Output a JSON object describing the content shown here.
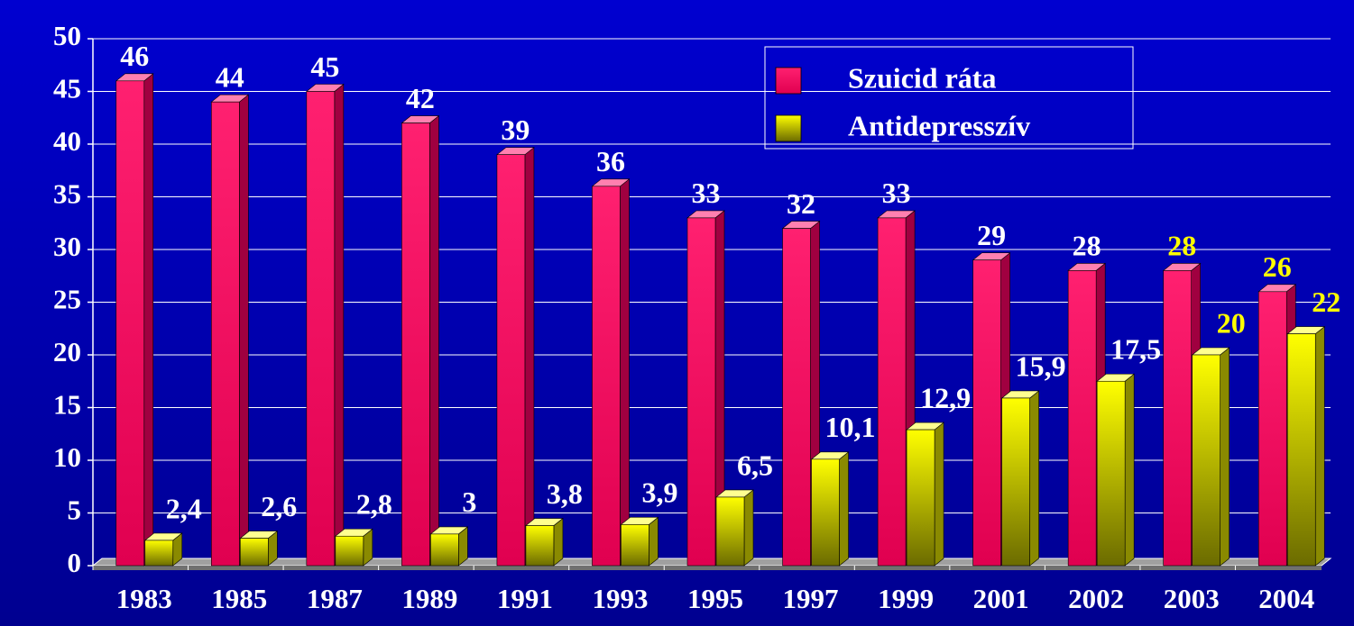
{
  "chart_data": {
    "type": "bar",
    "categories": [
      "1983",
      "1985",
      "1987",
      "1989",
      "1991",
      "1993",
      "1995",
      "1997",
      "1999",
      "2001",
      "2002",
      "2003",
      "2004"
    ],
    "series": [
      {
        "name": "Szuicid ráta",
        "color": "#ff0060",
        "values": [
          46,
          44,
          45,
          42,
          39,
          36,
          33,
          32,
          33,
          29,
          28,
          28,
          26
        ],
        "value_label_colors": [
          "#ffffff",
          "#ffffff",
          "#ffffff",
          "#ffffff",
          "#ffffff",
          "#ffffff",
          "#ffffff",
          "#ffffff",
          "#ffffff",
          "#ffffff",
          "#ffffff",
          "#ffff00",
          "#ffff00"
        ]
      },
      {
        "name": "Antidepresszív",
        "color": "#ffff00",
        "values": [
          2.4,
          2.6,
          2.8,
          3,
          3.8,
          3.9,
          6.5,
          10.1,
          12.9,
          15.9,
          17.5,
          20,
          22
        ],
        "value_labels": [
          "2,4",
          "2,6",
          "2,8",
          "3",
          "3,8",
          "3,9",
          "6,5",
          "10,1",
          "12,9",
          "15,9",
          "17,5",
          "20",
          "22"
        ],
        "value_label_colors": [
          "#ffffff",
          "#ffffff",
          "#ffffff",
          "#ffffff",
          "#ffffff",
          "#ffffff",
          "#ffffff",
          "#ffffff",
          "#ffffff",
          "#ffffff",
          "#ffffff",
          "#ffff00",
          "#ffff00"
        ]
      }
    ],
    "ylim": [
      0,
      50
    ],
    "yticks": [
      0,
      5,
      10,
      15,
      20,
      25,
      30,
      35,
      40,
      45,
      50
    ],
    "grid": true,
    "legend": "top-right"
  }
}
